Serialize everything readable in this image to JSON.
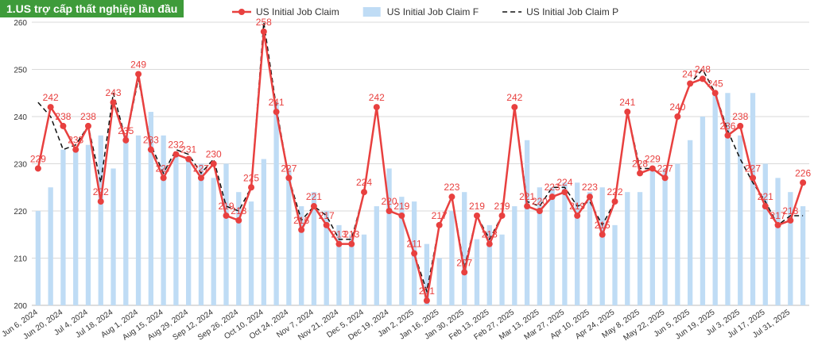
{
  "chart_data": {
    "type": "combo",
    "title": "1.US trợ cấp thất nghiệp lần đầu",
    "categories": [
      "Jun 6, 2024",
      null,
      "Jun 20, 2024",
      null,
      "Jul 4, 2024",
      null,
      "Jul 18, 2024",
      null,
      "Aug 1, 2024",
      null,
      "Aug 15, 2024",
      null,
      "Aug 29, 2024",
      null,
      "Sep 12, 2024",
      null,
      "Sep 26, 2024",
      null,
      "Oct 10, 2024",
      null,
      "Oct 24, 2024",
      null,
      "Nov 7, 2024",
      null,
      "Nov 21, 2024",
      null,
      "Dec 5, 2024",
      null,
      "Dec 19, 2024",
      null,
      "Jan 2, 2025",
      null,
      "Jan 16, 2025",
      null,
      "Jan 30, 2025",
      null,
      "Feb 13, 2025",
      null,
      "Feb 27, 2025",
      null,
      "Mar 13, 2025",
      null,
      "Mar 27, 2025",
      null,
      "Apr 10, 2025",
      null,
      "Apr 24, 2025",
      null,
      "May 8, 2025",
      null,
      "May 22, 2025",
      null,
      "Jun 5, 2025",
      null,
      "Jun 19, 2025",
      null,
      "Jul 3, 2025",
      null,
      "Jul 17, 2025",
      null,
      "Jul 31, 2025",
      null
    ],
    "series": [
      {
        "name": "US Initial Job Claim",
        "kind": "line",
        "color": "#e8403f",
        "values": [
          229,
          242,
          238,
          233,
          238,
          222,
          243,
          235,
          249,
          233,
          227,
          232,
          231,
          227,
          230,
          219,
          218,
          225,
          258,
          241,
          227,
          216,
          221,
          217,
          213,
          213,
          224,
          242,
          220,
          219,
          211,
          201,
          217,
          223,
          207,
          219,
          213,
          219,
          242,
          221,
          220,
          223,
          224,
          219,
          223,
          215,
          222,
          241,
          228,
          229,
          227,
          240,
          247,
          248,
          245,
          236,
          238,
          227,
          221,
          217,
          218,
          226
        ]
      },
      {
        "name": "US Initial Job Claim F",
        "kind": "bar",
        "color": "#bfdcf5",
        "values": [
          220,
          225,
          233,
          233,
          234,
          236,
          229,
          236,
          236,
          241,
          236,
          232,
          231,
          230,
          227,
          230,
          224,
          222,
          231,
          243,
          229,
          221,
          224,
          220,
          217,
          215,
          215,
          221,
          229,
          223,
          222,
          213,
          210,
          220,
          224,
          214,
          217,
          215,
          221,
          235,
          225,
          225,
          226,
          226,
          224,
          225,
          217,
          224,
          224,
          229,
          229,
          230,
          235,
          240,
          245,
          245,
          236,
          245,
          230,
          227,
          224,
          221
        ]
      },
      {
        "name": "US Initial Job Claim P",
        "kind": "dashed",
        "color": "#111111",
        "values": [
          243,
          240,
          233,
          234,
          238,
          226,
          245,
          235,
          248,
          234,
          228,
          233,
          232,
          228,
          231,
          221,
          220,
          225,
          260,
          242,
          227,
          218,
          221,
          219,
          214,
          214,
          224,
          242,
          220,
          219,
          211,
          203,
          217,
          223,
          208,
          219,
          214,
          219,
          242,
          222,
          221,
          225,
          225,
          221,
          222,
          217,
          222,
          241,
          229,
          229,
          227,
          240,
          247,
          250,
          245,
          237,
          231,
          226,
          222,
          217,
          219,
          219
        ]
      }
    ],
    "ylim": [
      200,
      260
    ],
    "yticks": [
      200,
      210,
      220,
      230,
      240,
      250,
      260
    ],
    "grid": true
  }
}
